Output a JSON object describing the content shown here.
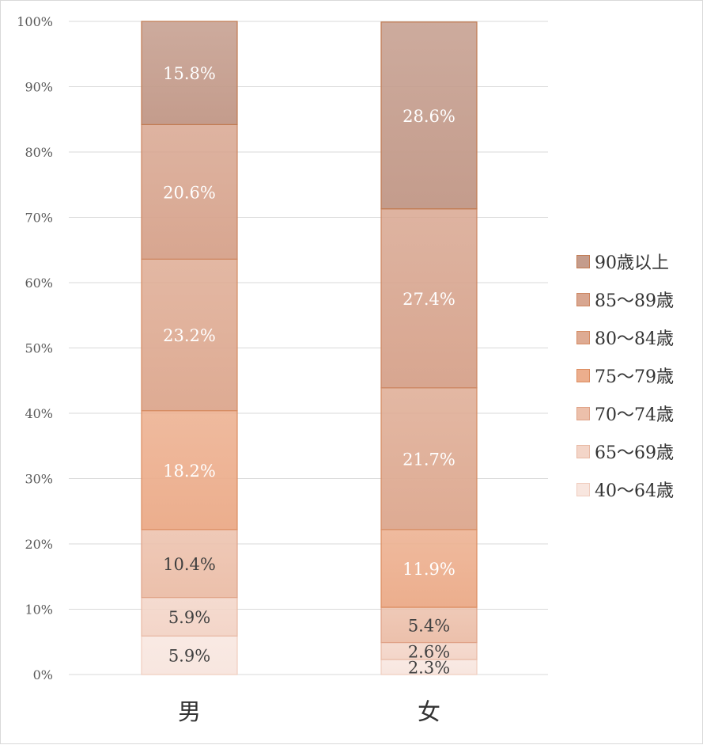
{
  "chart_data": {
    "type": "stacked-bar-100",
    "categories": [
      "男",
      "女"
    ],
    "ylim": [
      0,
      100
    ],
    "yticks": [
      "0%",
      "10%",
      "20%",
      "30%",
      "40%",
      "50%",
      "60%",
      "70%",
      "80%",
      "90%",
      "100%"
    ],
    "grid": true,
    "legend_position": "right",
    "series": [
      {
        "name": "40〜64歳",
        "values": [
          5.9,
          2.3
        ],
        "labels": [
          "5.9%",
          "2.3%"
        ],
        "color": "#f8e6df",
        "border": "#f0cdbf",
        "label_color": "#404040"
      },
      {
        "name": "65〜69歳",
        "values": [
          5.9,
          2.6
        ],
        "labels": [
          "5.9%",
          "2.6%"
        ],
        "color": "#f3d5c8",
        "border": "#e8b9a4",
        "label_color": "#404040"
      },
      {
        "name": "70〜74歳",
        "values": [
          10.4,
          5.4
        ],
        "labels": [
          "10.4%",
          "5.4%"
        ],
        "color": "#ecc0ab",
        "border": "#dfa287",
        "label_color": "#404040"
      },
      {
        "name": "75〜79歳",
        "values": [
          18.2,
          11.9
        ],
        "labels": [
          "18.2%",
          "11.9%"
        ],
        "color": "#ecae8d",
        "border": "#dc8c5f",
        "label_color": "#ffffff"
      },
      {
        "name": "80〜84歳",
        "values": [
          23.2,
          21.7
        ],
        "labels": [
          "23.2%",
          "21.7%"
        ],
        "color": "#deab93",
        "border": "#d58b62",
        "label_color": "#ffffff"
      },
      {
        "name": "85〜89歳",
        "values": [
          20.6,
          27.4
        ],
        "labels": [
          "20.6%",
          "27.4%"
        ],
        "color": "#d8a690",
        "border": "#cd8560",
        "label_color": "#ffffff"
      },
      {
        "name": "90歳以上",
        "values": [
          15.8,
          28.6
        ],
        "labels": [
          "15.8%",
          "28.6%"
        ],
        "color": "#c49c8c",
        "border": "#c27a50",
        "label_color": "#ffffff"
      }
    ]
  }
}
